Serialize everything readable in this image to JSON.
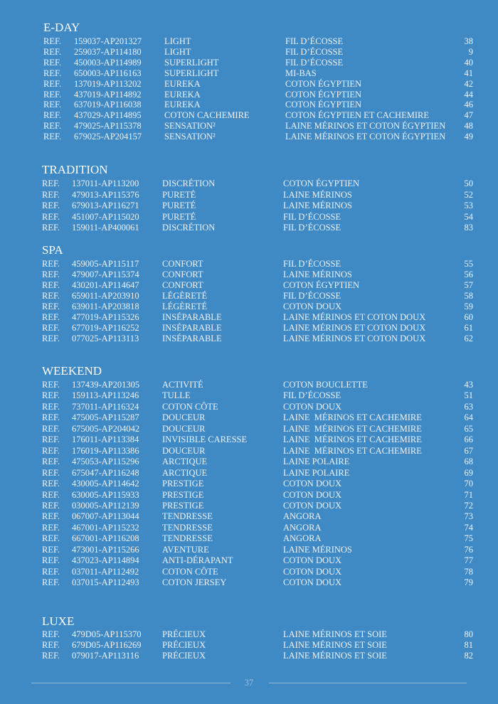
{
  "sections": [
    {
      "title": "E-DAY",
      "rows": [
        [
          "REF.",
          "159037-AP201327",
          "LIGHT",
          "FIL D’ÉCOSSE",
          38
        ],
        [
          "REF.",
          "259037-AP114180",
          "LIGHT",
          "FIL D’ÉCOSSE",
          9
        ],
        [
          "REF.",
          "450003-AP114989",
          "SUPERLIGHT",
          "FIL D’ÉCOSSE",
          40
        ],
        [
          "REF.",
          "650003-AP116163",
          "SUPERLIGHT",
          "MI-BAS",
          41
        ],
        [
          "REF.",
          "137019-AP113202",
          "EUREKA",
          "COTON ÉGYPTIEN",
          42
        ],
        [
          "REF.",
          "437019-AP114892",
          "EUREKA",
          "COTON ÉGYPTIEN",
          44
        ],
        [
          "REF.",
          "637019-AP116038",
          "EUREKA",
          "COTON ÉGYPTIEN",
          46
        ],
        [
          "REF.",
          "437029-AP114895",
          "COTON CACHEMIRE",
          "COTON ÉGYPTIEN ET CACHEMIRE",
          47
        ],
        [
          "REF.",
          "479025-AP115378",
          "SENSATION²",
          "LAINE MÉRINOS ET COTON ÉGYPTIEN",
          48
        ],
        [
          "REF.",
          "679025-AP204157",
          "SENSATION²",
          "LAINE MÉRINOS ET COTON ÉGYPTIEN",
          49
        ]
      ]
    },
    {
      "title": "TRADITION",
      "rows": [
        [
          "REF.",
          "137011-AP113200",
          "DISCRÉTION",
          "COTON ÉGYPTIEN",
          50
        ],
        [
          "REF.",
          "479013-AP115376",
          "PURETÉ",
          "LAINE MÉRINOS",
          52
        ],
        [
          "REF.",
          "679013-AP116271",
          "PURETÉ",
          "LAINE MÉRINOS",
          53
        ],
        [
          "REF.",
          "451007-AP115020",
          "PURETÉ",
          "FIL D’ÉCOSSE",
          54
        ],
        [
          "REF.",
          "159011-AP400061",
          "DISCRÉTION",
          "FIL D’ÉCOSSE",
          83
        ]
      ]
    },
    {
      "title": "SPA",
      "rows": [
        [
          "REF.",
          "459005-AP115117",
          "CONFORT",
          "FIL D’ÉCOSSE",
          55
        ],
        [
          "REF.",
          "479007-AP115374",
          "CONFORT",
          "LAINE MÉRINOS",
          56
        ],
        [
          "REF.",
          "430201-AP114647",
          "CONFORT",
          "COTON ÉGYPTIEN",
          57
        ],
        [
          "REF.",
          "659011-AP203910",
          "LÉGÈRETÉ",
          "FIL D’ÉCOSSE",
          58
        ],
        [
          "REF.",
          "639011-AP203818",
          "LÉGÈRETÉ",
          "COTON DOUX",
          59
        ],
        [
          "REF.",
          "477019-AP115326",
          "INSÉPARABLE",
          "LAINE MÉRINOS ET COTON DOUX",
          60
        ],
        [
          "REF.",
          "677019-AP116252",
          "INSÉPARABLE",
          "LAINE MÉRINOS ET COTON DOUX",
          61
        ],
        [
          "REF.",
          "077025-AP113113",
          "INSÉPARABLE",
          "LAINE MÉRINOS ET COTON DOUX",
          62
        ]
      ]
    },
    {
      "title": "WEEKEND",
      "rows": [
        [
          "REF.",
          "137439-AP201305",
          "ACTIVITÉ",
          "COTON BOUCLETTE",
          43
        ],
        [
          "REF.",
          "159113-AP113246",
          "TULLE",
          "FIL D’ÉCOSSE",
          51
        ],
        [
          "REF.",
          "737011-AP116324",
          "COTON CÔTE",
          "COTON DOUX",
          63
        ],
        [
          "REF.",
          "475005-AP115287",
          "DOUCEUR",
          "LAINE  MÉRINOS ET CACHEMIRE",
          64
        ],
        [
          "REF.",
          "675005-AP204042",
          "DOUCEUR",
          "LAINE  MÉRINOS ET CACHEMIRE",
          65
        ],
        [
          "REF.",
          "176011-AP113384",
          "INVISIBLE CARESSE",
          "LAINE  MÉRINOS ET CACHEMIRE",
          66
        ],
        [
          "REF.",
          "176019-AP113386",
          "DOUCEUR",
          "LAINE  MÉRINOS ET CACHEMIRE",
          67
        ],
        [
          "REF.",
          "475053-AP115296",
          "ARCTIQUE",
          "LAINE POLAIRE",
          68
        ],
        [
          "REF.",
          "675047-AP116248",
          "ARCTIQUE",
          "LAINE POLAIRE",
          69
        ],
        [
          "REF.",
          "430005-AP114642",
          "PRESTIGE",
          "COTON DOUX",
          70
        ],
        [
          "REF.",
          "630005-AP115933",
          "PRESTIGE",
          "COTON DOUX",
          71
        ],
        [
          "REF.",
          "030005-AP112139",
          "PRESTIGE",
          "COTON DOUX",
          72
        ],
        [
          "REF.",
          "067007-AP113044",
          "TENDRESSE",
          "ANGORA",
          73
        ],
        [
          "REF.",
          "467001-AP115232",
          "TENDRESSE",
          "ANGORA",
          74
        ],
        [
          "REF.",
          "667001-AP116208",
          "TENDRESSE",
          "ANGORA",
          75
        ],
        [
          "REF.",
          "473001-AP115266",
          "AVENTURE",
          "LAINE MÉRINOS",
          76
        ],
        [
          "REF.",
          "437023-AP114894",
          "ANTI-DÉRAPANT",
          "COTON DOUX",
          77
        ],
        [
          "REF.",
          "037011-AP112492",
          "COTON CÔTE",
          "COTON DOUX",
          78
        ],
        [
          "REF.",
          "037015-AP112493",
          "COTON JERSEY",
          "COTON DOUX",
          79
        ]
      ]
    },
    {
      "title": "LUXE",
      "rows": [
        [
          "REF.",
          "479D05-AP115370",
          "PRÉCIEUX",
          "LAINE MÉRINOS ET SOIE",
          80
        ],
        [
          "REF.",
          "679D05-AP116269",
          "PRÉCIEUX",
          "LAINE MÉRINOS ET SOIE",
          81
        ],
        [
          "REF.",
          "079017-AP113116",
          "PRÉCIEUX",
          "LAINE MÉRINOS ET SOIE",
          82
        ]
      ]
    }
  ],
  "footer": {
    "page_number": 37
  }
}
